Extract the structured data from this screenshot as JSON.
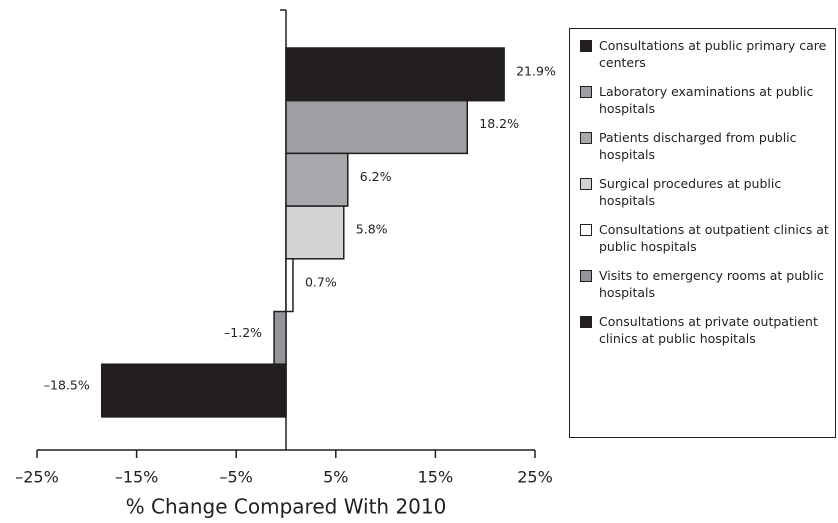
{
  "chart_data": {
    "type": "hbar",
    "x_label": "% Change Compared With 2010",
    "categories": [
      "Consultations at public primary care centers",
      "Laboratory examinations at public hospitals",
      "Patients discharged from public hospitals",
      "Surgical procedures at public hospitals",
      "Consultations at outpatient clinics at public hospitals",
      "Visits to emergency rooms at public hospitals",
      "Consultations at private outpatient clinics at public hospitals"
    ],
    "values": [
      21.9,
      18.2,
      6.2,
      5.8,
      0.7,
      -1.2,
      -18.5
    ],
    "value_labels": [
      "21.9%",
      "18.2%",
      "6.2%",
      "5.8%",
      "0.7%",
      "–1.2%",
      "–18.5%"
    ],
    "colors": [
      "#231f20",
      "#9d9fa2",
      "#a7a9ac",
      "#d1d3d4",
      "#ffffff",
      "#939598",
      "#231f20"
    ],
    "xlim": [
      -25,
      25
    ],
    "xticks": [
      {
        "value": -25,
        "label": "–25%"
      },
      {
        "value": -15,
        "label": "–15%"
      },
      {
        "value": -5,
        "label": "–5%"
      },
      {
        "value": 5,
        "label": "5%"
      },
      {
        "value": 15,
        "label": "15%"
      },
      {
        "value": 25,
        "label": "25%"
      }
    ]
  }
}
